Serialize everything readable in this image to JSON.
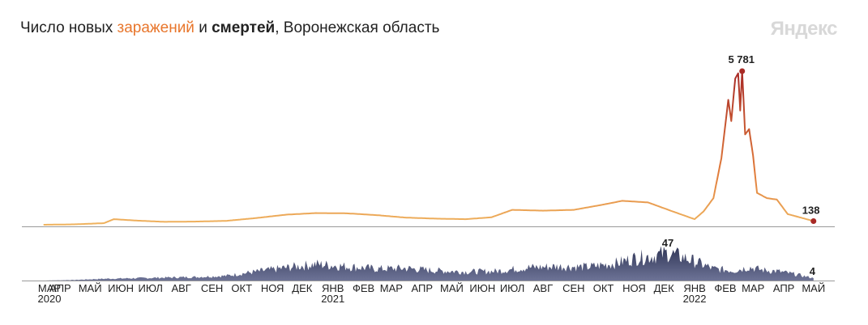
{
  "title": {
    "part1": "Число новых ",
    "infections": "заражений",
    "part2": " и ",
    "deaths": "смертей",
    "part3": ", Воронежская область"
  },
  "brand": "Яндекс",
  "colors": {
    "cases_line": "#efb35f",
    "cases_peak": "#a82a26",
    "deaths_area": "#565c7f",
    "deaths_peak": "#2f3556",
    "axis": "#888888"
  },
  "chart_data": [
    {
      "type": "line",
      "title": "Число новых заражений",
      "x_start": "2020-03",
      "x_end": "2022-05",
      "points": [
        [
          "2020-03-15",
          0
        ],
        [
          "2020-04-15",
          15
        ],
        [
          "2020-05-15",
          60
        ],
        [
          "2020-05-25",
          210
        ],
        [
          "2020-06-15",
          160
        ],
        [
          "2020-07-15",
          110
        ],
        [
          "2020-08-15",
          120
        ],
        [
          "2020-09-15",
          145
        ],
        [
          "2020-10-15",
          250
        ],
        [
          "2020-11-15",
          380
        ],
        [
          "2020-12-15",
          440
        ],
        [
          "2021-01-15",
          430
        ],
        [
          "2021-02-15",
          360
        ],
        [
          "2021-03-15",
          270
        ],
        [
          "2021-04-15",
          230
        ],
        [
          "2021-05-15",
          210
        ],
        [
          "2021-06-10",
          280
        ],
        [
          "2021-07-01",
          560
        ],
        [
          "2021-08-01",
          530
        ],
        [
          "2021-09-01",
          560
        ],
        [
          "2021-10-01",
          760
        ],
        [
          "2021-10-20",
          900
        ],
        [
          "2021-11-15",
          840
        ],
        [
          "2021-12-10",
          500
        ],
        [
          "2022-01-01",
          210
        ],
        [
          "2022-01-10",
          500
        ],
        [
          "2022-01-20",
          1000
        ],
        [
          "2022-01-28",
          2500
        ],
        [
          "2022-02-04",
          4700
        ],
        [
          "2022-02-07",
          3900
        ],
        [
          "2022-02-11",
          5500
        ],
        [
          "2022-02-14",
          5700
        ],
        [
          "2022-02-16",
          4300
        ],
        [
          "2022-02-18",
          5781
        ],
        [
          "2022-02-21",
          3400
        ],
        [
          "2022-02-25",
          3600
        ],
        [
          "2022-03-01",
          2600
        ],
        [
          "2022-03-05",
          1200
        ],
        [
          "2022-03-15",
          1000
        ],
        [
          "2022-03-25",
          950
        ],
        [
          "2022-04-05",
          400
        ],
        [
          "2022-04-20",
          250
        ],
        [
          "2022-05-01",
          138
        ]
      ],
      "peak": {
        "date": "2022-02-18",
        "label": "5 781"
      },
      "last": {
        "date": "2022-05-01",
        "label": "138"
      },
      "ylim": [
        0,
        5781
      ]
    },
    {
      "type": "area",
      "title": "Число новых смертей",
      "points": [
        [
          "2020-03-15",
          0
        ],
        [
          "2020-04-15",
          1
        ],
        [
          "2020-05-15",
          3
        ],
        [
          "2020-06-15",
          4
        ],
        [
          "2020-07-15",
          5
        ],
        [
          "2020-08-15",
          6
        ],
        [
          "2020-09-15",
          8
        ],
        [
          "2020-10-10",
          14
        ],
        [
          "2020-11-15",
          22
        ],
        [
          "2020-12-15",
          28
        ],
        [
          "2021-01-15",
          24
        ],
        [
          "2021-02-15",
          20
        ],
        [
          "2021-03-15",
          21
        ],
        [
          "2021-04-15",
          17
        ],
        [
          "2021-05-15",
          15
        ],
        [
          "2021-06-15",
          16
        ],
        [
          "2021-07-15",
          22
        ],
        [
          "2021-08-15",
          24
        ],
        [
          "2021-09-15",
          23
        ],
        [
          "2021-10-15",
          30
        ],
        [
          "2021-11-01",
          38
        ],
        [
          "2021-11-20",
          42
        ],
        [
          "2021-12-05",
          47
        ],
        [
          "2021-12-20",
          40
        ],
        [
          "2022-01-05",
          30
        ],
        [
          "2022-01-20",
          20
        ],
        [
          "2022-02-10",
          17
        ],
        [
          "2022-02-25",
          23
        ],
        [
          "2022-03-10",
          18
        ],
        [
          "2022-03-25",
          16
        ],
        [
          "2022-04-15",
          10
        ],
        [
          "2022-05-01",
          4
        ]
      ],
      "peak": {
        "date": "2021-12-05",
        "label": "47"
      },
      "last": {
        "date": "2022-05-01",
        "label": "4"
      },
      "ylim": [
        0,
        47
      ]
    }
  ],
  "x_axis": {
    "months": [
      "МАР",
      "АПР",
      "МАЙ",
      "ИЮН",
      "ИЮЛ",
      "АВГ",
      "СЕН",
      "ОКТ",
      "НОЯ",
      "ДЕК",
      "ЯНВ",
      "ФЕВ",
      "МАР",
      "АПР",
      "МАЙ",
      "ИЮН",
      "ИЮЛ",
      "АВГ",
      "СЕН",
      "ОКТ",
      "НОЯ",
      "ДЕК",
      "ЯНВ",
      "ФЕВ",
      "МАР",
      "АПР",
      "МАЙ"
    ],
    "years": [
      {
        "label": "2020",
        "month_index": 0
      },
      {
        "label": "2021",
        "month_index": 10
      },
      {
        "label": "2022",
        "month_index": 22
      }
    ]
  }
}
